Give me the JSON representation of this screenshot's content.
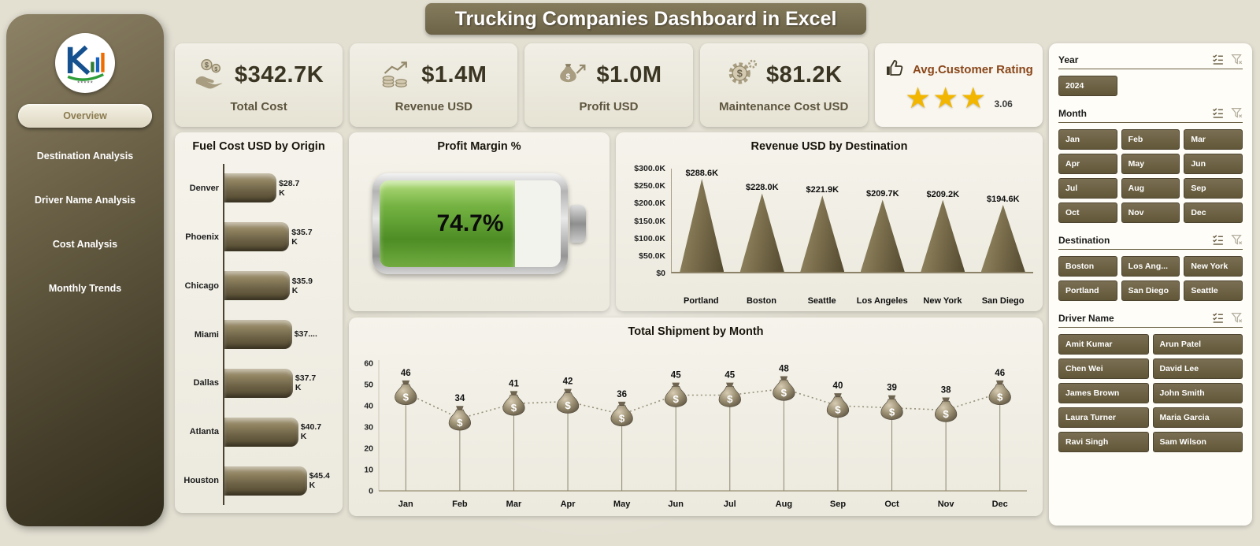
{
  "title": "Trucking Companies Dashboard in Excel",
  "sidebar": {
    "items": [
      {
        "label": "Overview",
        "active": true
      },
      {
        "label": "Destination Analysis",
        "active": false
      },
      {
        "label": "Driver Name Analysis",
        "active": false
      },
      {
        "label": "Cost Analysis",
        "active": false
      },
      {
        "label": "Monthly Trends",
        "active": false
      }
    ]
  },
  "kpis": [
    {
      "icon": "hand-coins-icon",
      "value": "$342.7K",
      "label": "Total Cost"
    },
    {
      "icon": "coins-growth-icon",
      "value": "$1.4M",
      "label": "Revenue USD"
    },
    {
      "icon": "money-bag-growth-icon",
      "value": "$1.0M",
      "label": "Profit USD"
    },
    {
      "icon": "gear-dollar-icon",
      "value": "$81.2K",
      "label": "Maintenance Cost USD"
    }
  ],
  "rating": {
    "icon": "thumbs-up-icon",
    "label": "Avg.Customer Rating",
    "stars": 3,
    "value": "3.06"
  },
  "chart_data": [
    {
      "id": "fuel_cost_by_origin",
      "type": "bar",
      "orientation": "horizontal",
      "title": "Fuel Cost USD by Origin",
      "categories": [
        "Denver",
        "Phoenix",
        "Chicago",
        "Miami",
        "Dallas",
        "Atlanta",
        "Houston"
      ],
      "values": [
        28.7,
        35.7,
        35.9,
        37.2,
        37.7,
        40.7,
        45.4
      ],
      "labels": [
        "$28.7 K",
        "$35.7 K",
        "$35.9 K",
        "$37....",
        "$37.7 K",
        "$40.7 K",
        "$45.4 K"
      ],
      "xlim": [
        0,
        46
      ]
    },
    {
      "id": "profit_margin",
      "type": "gauge",
      "title": "Profit Margin %",
      "value": 74.7,
      "display": "74.7%"
    },
    {
      "id": "revenue_by_destination",
      "type": "bar",
      "shape": "pyramid",
      "title": "Revenue USD by Destination",
      "categories": [
        "Portland",
        "Boston",
        "Seattle",
        "Los Angeles",
        "New York",
        "San Diego"
      ],
      "values": [
        288.6,
        228.0,
        221.9,
        209.7,
        209.2,
        194.6
      ],
      "labels": [
        "$288.6K",
        "$228.0K",
        "$221.9K",
        "$209.7K",
        "$209.2K",
        "$194.6K"
      ],
      "yticks": [
        0,
        50,
        100,
        150,
        200,
        250,
        300
      ],
      "ytick_labels": [
        "$0",
        "$50.0K",
        "$100.0K",
        "$150.0K",
        "$200.0K",
        "$250.0K",
        "$300.0K"
      ],
      "ylim": [
        0,
        300
      ]
    },
    {
      "id": "total_shipment_by_month",
      "type": "line",
      "title": "Total Shipment by Month",
      "categories": [
        "Jan",
        "Feb",
        "Mar",
        "Apr",
        "May",
        "Jun",
        "Jul",
        "Aug",
        "Sep",
        "Oct",
        "Nov",
        "Dec"
      ],
      "values": [
        46,
        34,
        41,
        42,
        36,
        45,
        45,
        48,
        40,
        39,
        38,
        46
      ],
      "yticks": [
        0,
        10,
        20,
        30,
        40,
        50,
        60
      ],
      "ylim": [
        0,
        60
      ],
      "marker": "money-bag-icon",
      "line_style": "dotted"
    }
  ],
  "filters": {
    "slicers": [
      {
        "label": "Year",
        "columns": 3,
        "items": [
          "2024"
        ]
      },
      {
        "label": "Month",
        "columns": 3,
        "items": [
          "Jan",
          "Feb",
          "Mar",
          "Apr",
          "May",
          "Jun",
          "Jul",
          "Aug",
          "Sep",
          "Oct",
          "Nov",
          "Dec"
        ]
      },
      {
        "label": "Destination",
        "columns": 3,
        "items": [
          "Boston",
          "Los Ang...",
          "New York",
          "Portland",
          "San Diego",
          "Seattle"
        ]
      },
      {
        "label": "Driver Name",
        "columns": 2,
        "items": [
          "Amit Kumar",
          "Arun Patel",
          "Chen Wei",
          "David Lee",
          "James Brown",
          "John Smith",
          "Laura Turner",
          "Maria Garcia",
          "Ravi Singh",
          "Sam Wilson"
        ]
      }
    ]
  },
  "colors": {
    "accent_olive": "#6b6044",
    "sidebar_dark": "#3a3424",
    "card_bg": "#efede2",
    "battery_green": "#5a9e2f",
    "star_gold": "#f2b600",
    "rating_title": "#8a4619"
  }
}
